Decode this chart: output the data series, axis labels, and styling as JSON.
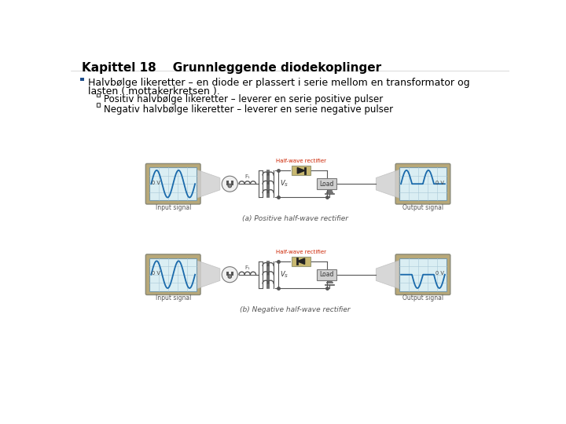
{
  "title_part1": "Kapittel 18",
  "title_part2": "Grunnleggende diodekoplinger",
  "bullet1_line1": "Halvbølge likeretter – en diode er plassert i serie mellom en transformator og",
  "bullet1_line2": "lasten ( mottakerkretsen ).",
  "sub1": "Positiv halvbølge likeretter – leverer en serie positive pulser",
  "sub2": "Negativ halvbølge likeretter – leverer en serie negative pulser",
  "caption_a": "(a) Positive half-wave rectifier",
  "caption_b": "(b) Negative half-wave rectifier",
  "label_hw": "Half-wave rectifier",
  "label_load": "Load",
  "label_input": "Input signal",
  "label_output": "Output signal",
  "label_0v": "0 V",
  "label_vs": "V",
  "label_f1": "F₁",
  "bg_color": "#ffffff",
  "title_color": "#000000",
  "text_color": "#000000",
  "bullet_color": "#1F4E8C",
  "scope_bg": "#daeef3",
  "scope_outer": "#b8a878",
  "scope_border": "#888888",
  "sine_color": "#1a6aab",
  "hw_label_color": "#cc2200",
  "circuit_line_color": "#555555",
  "grid_color": "#a8c8d8",
  "diode_box_color": "#c8b870",
  "load_box_color": "#d0d0d0",
  "funnel_color": "#d0d0d0",
  "plug_color": "#f0f0f0"
}
